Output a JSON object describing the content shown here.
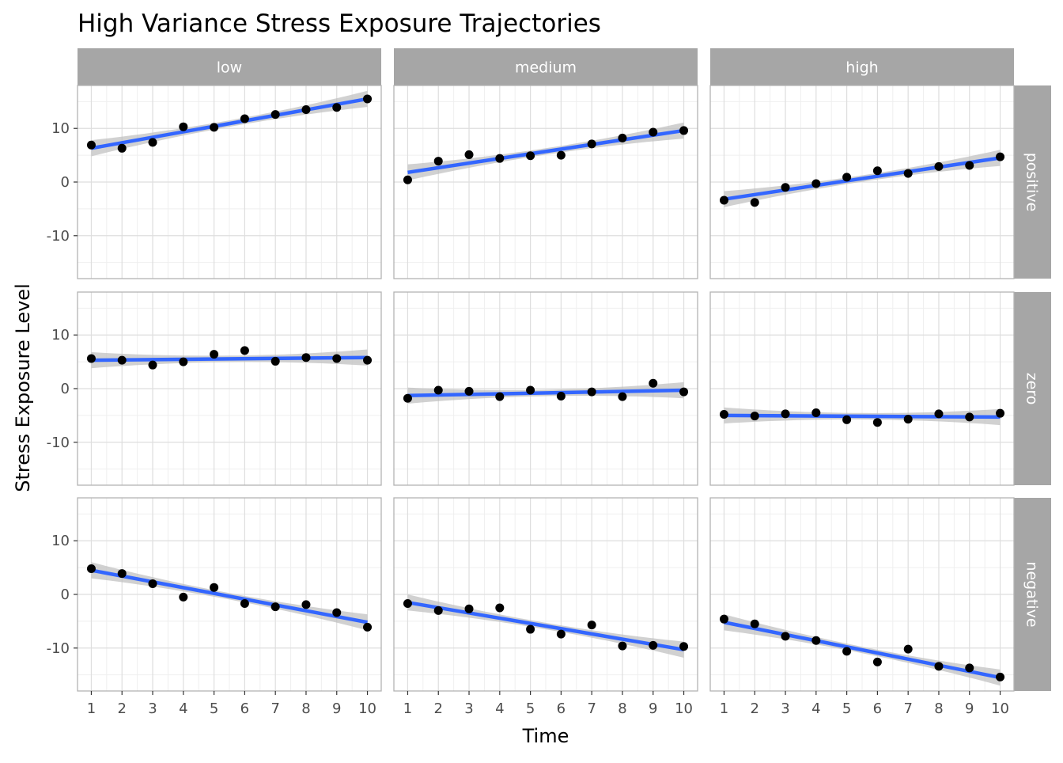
{
  "chart_data": {
    "type": "scatter",
    "title": "High Variance Stress Exposure Trajectories",
    "xlabel": "Time",
    "ylabel": "Stress Exposure Level",
    "x": [
      1,
      2,
      3,
      4,
      5,
      6,
      7,
      8,
      9,
      10
    ],
    "xlim": [
      0.55,
      10.45
    ],
    "ylim": [
      -18,
      18
    ],
    "y_ticks": [
      10,
      0,
      -10
    ],
    "y_tick_labels": [
      "10",
      "0",
      "-10"
    ],
    "x_tick_labels": [
      "1",
      "2",
      "3",
      "4",
      "5",
      "6",
      "7",
      "8",
      "9",
      "10"
    ],
    "grid": true,
    "columns": [
      "low",
      "medium",
      "high"
    ],
    "rows": [
      "positive",
      "zero",
      "negative"
    ],
    "panels": [
      {
        "column": "low",
        "row": "positive",
        "points": [
          6.9,
          6.3,
          7.4,
          10.3,
          10.2,
          11.8,
          12.6,
          13.5,
          13.9,
          15.5
        ],
        "fit": {
          "start": 6.3,
          "end": 15.5
        }
      },
      {
        "column": "medium",
        "row": "positive",
        "points": [
          0.4,
          3.9,
          5.1,
          4.4,
          4.9,
          5.0,
          7.1,
          8.2,
          9.3,
          9.6
        ],
        "fit": {
          "start": 1.8,
          "end": 9.6
        }
      },
      {
        "column": "high",
        "row": "positive",
        "points": [
          -3.4,
          -3.8,
          -1.0,
          -0.3,
          0.9,
          2.1,
          1.6,
          2.9,
          3.1,
          4.7
        ],
        "fit": {
          "start": -3.2,
          "end": 4.5
        }
      },
      {
        "column": "low",
        "row": "zero",
        "points": [
          5.6,
          5.3,
          4.4,
          5.0,
          6.4,
          7.1,
          5.1,
          5.8,
          5.6,
          5.3
        ],
        "fit": {
          "start": 5.3,
          "end": 5.8
        }
      },
      {
        "column": "medium",
        "row": "zero",
        "points": [
          -1.8,
          -0.3,
          -0.5,
          -1.5,
          -0.3,
          -1.4,
          -0.6,
          -1.5,
          1.0,
          -0.6
        ],
        "fit": {
          "start": -1.3,
          "end": -0.3
        }
      },
      {
        "column": "high",
        "row": "zero",
        "points": [
          -4.8,
          -5.1,
          -4.7,
          -4.5,
          -5.8,
          -6.3,
          -5.7,
          -4.7,
          -5.3,
          -4.6
        ],
        "fit": {
          "start": -5.0,
          "end": -5.3
        }
      },
      {
        "column": "low",
        "row": "negative",
        "points": [
          4.8,
          3.9,
          2.0,
          -0.5,
          1.3,
          -1.7,
          -2.3,
          -1.9,
          -3.4,
          -6.1
        ],
        "fit": {
          "start": 4.5,
          "end": -5.2
        }
      },
      {
        "column": "medium",
        "row": "negative",
        "points": [
          -1.7,
          -3.0,
          -2.7,
          -2.5,
          -6.5,
          -7.4,
          -5.7,
          -9.6,
          -9.5,
          -9.7
        ],
        "fit": {
          "start": -1.5,
          "end": -10.3
        }
      },
      {
        "column": "high",
        "row": "negative",
        "points": [
          -4.6,
          -5.5,
          -7.8,
          -8.6,
          -10.6,
          -12.6,
          -10.2,
          -13.4,
          -13.7,
          -15.4
        ],
        "fit": {
          "start": -5.2,
          "end": -15.5
        }
      }
    ],
    "colors": {
      "point": "#000000",
      "fit_line": "#3366ff",
      "ribbon": "#bdbdbd",
      "strip_background": "#a6a6a6",
      "panel_border": "#b3b3b3",
      "grid_major": "#dedede",
      "grid_minor": "#efefef"
    }
  }
}
